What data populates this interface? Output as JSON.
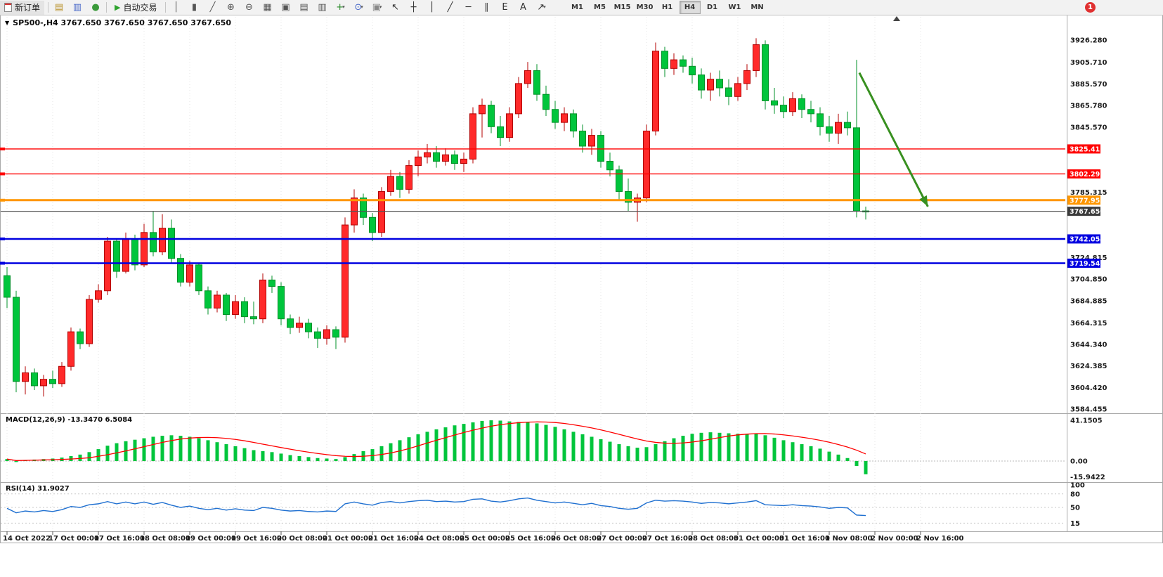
{
  "toolbar": {
    "new_order_label": "新订单",
    "autotrading_label": "自动交易",
    "timeframes": [
      "M1",
      "M5",
      "M15",
      "M30",
      "H1",
      "H4",
      "D1",
      "W1",
      "MN"
    ],
    "active_timeframe": "H4",
    "notification_badge": "1",
    "tool_icons": [
      {
        "name": "market-watch-icon",
        "glyph": "▤",
        "color": "#b8922a"
      },
      {
        "name": "data-window-icon",
        "glyph": "▥",
        "color": "#4868c8"
      },
      {
        "name": "navigator-icon",
        "glyph": "●",
        "color": "#3a9a3a"
      }
    ],
    "chart_tool_icons": [
      {
        "name": "bar-chart-icon",
        "glyph": "│",
        "color": "#555555"
      },
      {
        "name": "candlestick-chart-icon",
        "glyph": "▮",
        "color": "#555555"
      },
      {
        "name": "line-chart-icon",
        "glyph": "╱",
        "color": "#555555"
      },
      {
        "name": "zoom-in-icon",
        "glyph": "⊕",
        "color": "#555555"
      },
      {
        "name": "zoom-out-icon",
        "glyph": "⊖",
        "color": "#555555"
      },
      {
        "name": "grid-icon",
        "glyph": "▦",
        "color": "#555555"
      },
      {
        "name": "tile-windows-icon",
        "glyph": "▣",
        "color": "#555555"
      },
      {
        "name": "cascade-windows-icon",
        "glyph": "▤",
        "color": "#555555"
      },
      {
        "name": "arrange-windows-icon",
        "glyph": "▥",
        "color": "#555555"
      },
      {
        "name": "add-indicator-icon",
        "glyph": "+",
        "color": "#2a8a2a",
        "dropdown": true
      },
      {
        "name": "period-icon",
        "glyph": "⊙",
        "color": "#4868c8",
        "dropdown": true
      },
      {
        "name": "snapshot-icon",
        "glyph": "▣",
        "color": "#888888",
        "dropdown": true
      },
      {
        "name": "cursor-icon",
        "glyph": "↖",
        "color": "#333333"
      },
      {
        "name": "crosshair-icon",
        "glyph": "┼",
        "color": "#333333"
      },
      {
        "name": "vertical-line-icon",
        "glyph": "│",
        "color": "#333333"
      },
      {
        "name": "trendline-icon",
        "glyph": "╱",
        "color": "#333333"
      },
      {
        "name": "horizontal-line-icon",
        "glyph": "─",
        "color": "#333333"
      },
      {
        "name": "channel-icon",
        "glyph": "∥",
        "color": "#333333"
      },
      {
        "name": "fibonacci-icon",
        "glyph": "E",
        "color": "#333333"
      },
      {
        "name": "text-label-icon",
        "glyph": "A",
        "color": "#333333"
      },
      {
        "name": "arrows-tool-icon",
        "glyph": "↗",
        "color": "#333333",
        "dropdown": true
      }
    ]
  },
  "chart_window": {
    "title": "SP500-,H4 3767.650 3767.650 3767.650 3767.650",
    "macd_label": "MACD(12,26,9) -13.3470 6.5084",
    "rsi_label": "RSI(14) 31.9027"
  },
  "chart_data": {
    "type": "candlestick",
    "symbol": "SP500-",
    "timeframe": "H4",
    "price_axis": {
      "max": 3926.28,
      "min": 3584.455,
      "labels": [
        "3926.280",
        "3905.710",
        "3885.570",
        "3865.780",
        "3845.570",
        "3785.315",
        "3724.815",
        "3704.850",
        "3684.885",
        "3664.315",
        "3644.340",
        "3624.385",
        "3604.420",
        "3584.455"
      ]
    },
    "time_axis": {
      "labels": [
        "14 Oct 2022",
        "17 Oct 00:00",
        "17 Oct 16:00",
        "18 Oct 08:00",
        "19 Oct 00:00",
        "19 Oct 16:00",
        "20 Oct 08:00",
        "21 Oct 00:00",
        "21 Oct 16:00",
        "24 Oct 08:00",
        "25 Oct 00:00",
        "25 Oct 16:00",
        "26 Oct 08:00",
        "27 Oct 00:00",
        "27 Oct 16:00",
        "28 Oct 08:00",
        "31 Oct 00:00",
        "31 Oct 16:00",
        "1 Nov 08:00",
        "2 Nov 00:00",
        "2 Nov 16:00"
      ]
    },
    "colors": {
      "up_fill": "#ff2a2a",
      "up_stroke": "#b30000",
      "down_fill": "#00c53c",
      "down_stroke": "#009128",
      "macd_histogram": "#00c53c",
      "macd_signal": "#ff0000",
      "rsi_line": "#1e6fd0"
    },
    "candles": [
      [
        3708,
        3716,
        3678,
        3688
      ],
      [
        3688,
        3694,
        3600,
        3610
      ],
      [
        3610,
        3624,
        3598,
        3618
      ],
      [
        3618,
        3622,
        3602,
        3606
      ],
      [
        3606,
        3616,
        3596,
        3612
      ],
      [
        3612,
        3620,
        3604,
        3608
      ],
      [
        3608,
        3628,
        3605,
        3624
      ],
      [
        3624,
        3660,
        3620,
        3656
      ],
      [
        3656,
        3659,
        3640,
        3645
      ],
      [
        3645,
        3690,
        3642,
        3686
      ],
      [
        3686,
        3700,
        3683,
        3694
      ],
      [
        3694,
        3744,
        3690,
        3740
      ],
      [
        3740,
        3742,
        3706,
        3712
      ],
      [
        3712,
        3748,
        3710,
        3742
      ],
      [
        3742,
        3746,
        3713,
        3718
      ],
      [
        3718,
        3756,
        3716,
        3748
      ],
      [
        3748,
        3768,
        3726,
        3730
      ],
      [
        3730,
        3765,
        3727,
        3752
      ],
      [
        3752,
        3760,
        3720,
        3724
      ],
      [
        3724,
        3728,
        3698,
        3702
      ],
      [
        3702,
        3722,
        3698,
        3718
      ],
      [
        3718,
        3720,
        3690,
        3694
      ],
      [
        3694,
        3698,
        3672,
        3678
      ],
      [
        3678,
        3694,
        3674,
        3690
      ],
      [
        3690,
        3692,
        3666,
        3672
      ],
      [
        3672,
        3690,
        3668,
        3684
      ],
      [
        3684,
        3688,
        3664,
        3670
      ],
      [
        3670,
        3684,
        3663,
        3668
      ],
      [
        3668,
        3710,
        3664,
        3704
      ],
      [
        3704,
        3708,
        3692,
        3698
      ],
      [
        3698,
        3702,
        3662,
        3668
      ],
      [
        3668,
        3672,
        3654,
        3660
      ],
      [
        3660,
        3670,
        3655,
        3664
      ],
      [
        3664,
        3668,
        3650,
        3656
      ],
      [
        3656,
        3660,
        3641,
        3650
      ],
      [
        3650,
        3662,
        3644,
        3658
      ],
      [
        3658,
        3661,
        3640,
        3651
      ],
      [
        3651,
        3762,
        3646,
        3755
      ],
      [
        3755,
        3788,
        3748,
        3780
      ],
      [
        3780,
        3784,
        3755,
        3762
      ],
      [
        3762,
        3766,
        3740,
        3748
      ],
      [
        3748,
        3790,
        3744,
        3786
      ],
      [
        3786,
        3806,
        3782,
        3800
      ],
      [
        3800,
        3804,
        3780,
        3788
      ],
      [
        3788,
        3815,
        3784,
        3810
      ],
      [
        3810,
        3824,
        3800,
        3818
      ],
      [
        3818,
        3830,
        3812,
        3822
      ],
      [
        3822,
        3828,
        3808,
        3814
      ],
      [
        3814,
        3826,
        3810,
        3820
      ],
      [
        3820,
        3824,
        3806,
        3812
      ],
      [
        3812,
        3822,
        3804,
        3816
      ],
      [
        3816,
        3864,
        3812,
        3858
      ],
      [
        3858,
        3872,
        3836,
        3866
      ],
      [
        3866,
        3870,
        3840,
        3846
      ],
      [
        3846,
        3856,
        3828,
        3836
      ],
      [
        3836,
        3864,
        3832,
        3858
      ],
      [
        3858,
        3892,
        3854,
        3886
      ],
      [
        3886,
        3906,
        3882,
        3898
      ],
      [
        3898,
        3904,
        3870,
        3876
      ],
      [
        3876,
        3884,
        3856,
        3862
      ],
      [
        3862,
        3870,
        3844,
        3850
      ],
      [
        3850,
        3864,
        3842,
        3858
      ],
      [
        3858,
        3862,
        3836,
        3842
      ],
      [
        3842,
        3848,
        3822,
        3828
      ],
      [
        3828,
        3844,
        3820,
        3838
      ],
      [
        3838,
        3842,
        3808,
        3814
      ],
      [
        3814,
        3822,
        3800,
        3806
      ],
      [
        3806,
        3810,
        3778,
        3786
      ],
      [
        3786,
        3798,
        3768,
        3776
      ],
      [
        3776,
        3784,
        3758,
        3780
      ],
      [
        3780,
        3848,
        3776,
        3842
      ],
      [
        3842,
        3924,
        3838,
        3916
      ],
      [
        3916,
        3920,
        3892,
        3900
      ],
      [
        3900,
        3914,
        3894,
        3908
      ],
      [
        3908,
        3912,
        3896,
        3902
      ],
      [
        3902,
        3910,
        3886,
        3894
      ],
      [
        3894,
        3900,
        3872,
        3880
      ],
      [
        3880,
        3896,
        3870,
        3890
      ],
      [
        3890,
        3898,
        3874,
        3882
      ],
      [
        3882,
        3890,
        3866,
        3874
      ],
      [
        3874,
        3892,
        3870,
        3886
      ],
      [
        3886,
        3904,
        3880,
        3898
      ],
      [
        3898,
        3928,
        3892,
        3922
      ],
      [
        3922,
        3926,
        3862,
        3870
      ],
      [
        3870,
        3882,
        3858,
        3866
      ],
      [
        3866,
        3874,
        3854,
        3860
      ],
      [
        3860,
        3878,
        3856,
        3872
      ],
      [
        3872,
        3876,
        3854,
        3862
      ],
      [
        3862,
        3870,
        3850,
        3858
      ],
      [
        3858,
        3864,
        3838,
        3846
      ],
      [
        3846,
        3856,
        3832,
        3840
      ],
      [
        3840,
        3858,
        3830,
        3850
      ],
      [
        3850,
        3860,
        3838,
        3845
      ],
      [
        3845,
        3908,
        3762,
        3768
      ],
      [
        3768,
        3772,
        3760,
        3767.65
      ]
    ],
    "hlines": [
      {
        "value": 3825.412,
        "label": "3825.412",
        "color": "#ff0000",
        "width": 1.3
      },
      {
        "value": 3802.291,
        "label": "3802.291",
        "color": "#ff0000",
        "width": 1.3
      },
      {
        "value": 3777.953,
        "label": "3777.953",
        "color": "#ff9600",
        "width": 3
      },
      {
        "value": 3742.054,
        "label": "3742.054",
        "color": "#0000e0",
        "width": 2.5
      },
      {
        "value": 3719.542,
        "label": "3719.542",
        "color": "#0000e0",
        "width": 2.5
      }
    ],
    "current_price": {
      "value": 3767.65,
      "label": "3767.650",
      "line_color": "#555555",
      "box_color": "#3a3a3a"
    },
    "arrow_annotation": {
      "from_index": 93.3,
      "from_price": 3896,
      "to_index": 100.8,
      "to_price": 3772,
      "color": "#389020"
    },
    "macd": {
      "name": "MACD(12,26,9)",
      "main_value": -13.347,
      "signal_value": 6.5084,
      "axis_labels": [
        "41.1505",
        "0.00",
        "-15.9422"
      ],
      "values": [
        2,
        -1,
        1,
        1.5,
        2,
        2.5,
        3.5,
        5,
        6.5,
        9,
        12,
        15.5,
        18,
        20,
        21.5,
        23,
        24.5,
        25.5,
        26,
        25.5,
        24.5,
        23,
        21,
        19,
        17,
        15,
        13,
        11,
        10,
        9,
        7.5,
        6,
        5,
        4,
        3,
        2.5,
        2,
        4,
        7,
        10,
        12,
        15,
        18,
        21,
        24,
        27,
        29.5,
        32,
        34,
        36,
        37.5,
        39,
        40.5,
        41.1,
        40.8,
        40,
        39.5,
        39,
        38,
        36.5,
        34.5,
        32,
        29.5,
        27,
        24.5,
        22,
        19.5,
        17,
        15,
        13.5,
        14,
        17,
        20,
        23,
        25.5,
        27.5,
        28.5,
        29,
        28.5,
        28,
        27.5,
        27,
        27.5,
        26,
        23.5,
        21,
        19,
        17,
        15,
        12.5,
        9.5,
        6.5,
        3,
        -5,
        -13.347
      ]
    },
    "rsi": {
      "name": "RSI(14)",
      "value": 31.9027,
      "levels": [
        80,
        50,
        15
      ],
      "axis_labels": [
        "100",
        "80",
        "50",
        "15"
      ],
      "values": [
        48,
        38,
        42,
        40,
        43,
        41,
        45,
        52,
        50,
        56,
        58,
        63,
        58,
        62,
        58,
        62,
        57,
        61,
        55,
        50,
        53,
        48,
        45,
        48,
        44,
        47,
        44,
        43,
        50,
        48,
        44,
        42,
        43,
        41,
        40,
        42,
        41,
        58,
        62,
        58,
        55,
        61,
        63,
        60,
        63,
        65,
        66,
        63,
        64,
        62,
        63,
        68,
        69,
        64,
        62,
        65,
        69,
        71,
        66,
        63,
        60,
        62,
        59,
        56,
        59,
        54,
        52,
        48,
        46,
        48,
        60,
        66,
        64,
        65,
        64,
        62,
        59,
        61,
        60,
        58,
        60,
        62,
        65,
        56,
        55,
        54,
        56,
        54,
        53,
        51,
        48,
        50,
        49,
        33,
        31.9
      ]
    }
  }
}
